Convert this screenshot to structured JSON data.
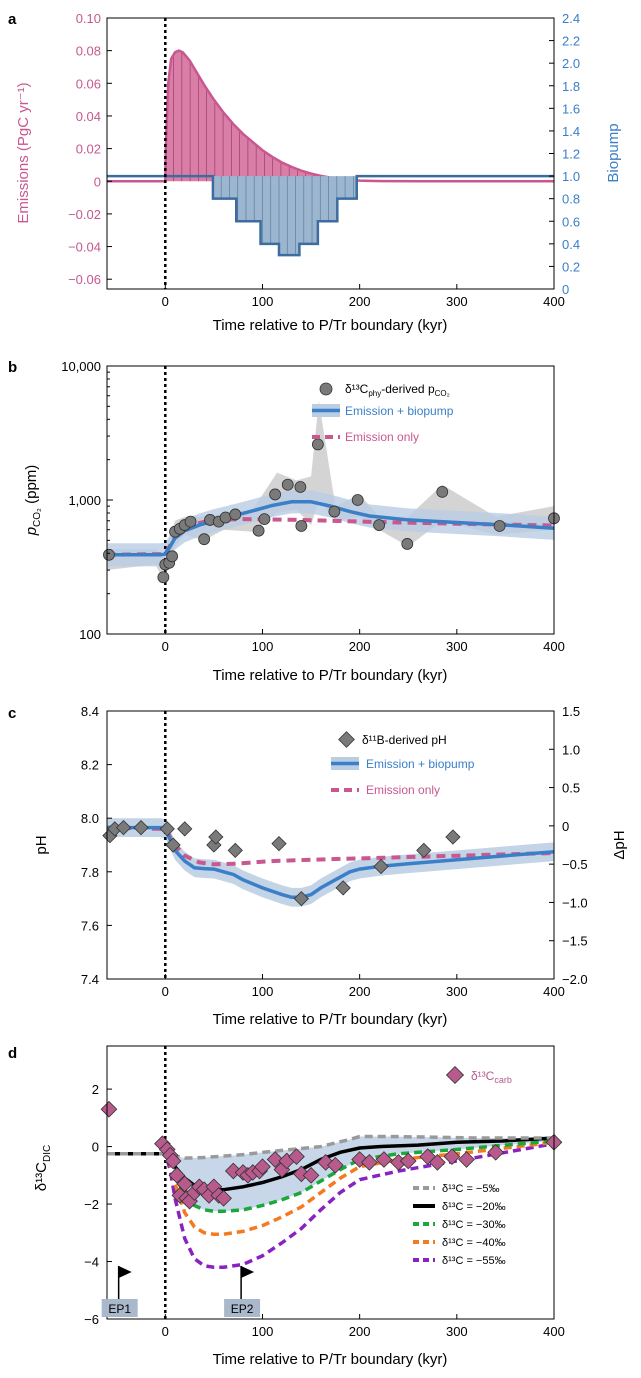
{
  "colors": {
    "pink": "#c8588f",
    "pink_fill": "#d97fa7",
    "blue": "#3a7fc8",
    "blue_fill": "#9db6cf",
    "blue_edge": "#3d6d9e",
    "band": "#b9cde3",
    "grey_band": "#cfcfcf",
    "marker_grey": "#7a7a7a",
    "carb": "#b85a8c",
    "green": "#1aa83a",
    "orange": "#f47a20",
    "purple": "#8a22c0",
    "grey_dash": "#9a9a9a"
  },
  "chart_data": [
    {
      "panel": "a",
      "type": "area",
      "xlabel": "Time relative to P/Tr boundary (kyr)",
      "xlim": [
        -60,
        400
      ],
      "xticks": [
        "0",
        "100",
        "200",
        "300",
        "400"
      ],
      "ylabel_left": "Emissions (PgC yr⁻¹)",
      "ylim_left": [
        -0.066,
        0.1
      ],
      "yticks_left": [
        "0.10",
        "0.08",
        "0.06",
        "0.04",
        "0.02",
        "0",
        "−0.02",
        "−0.04",
        "−0.06"
      ],
      "ylabel_right": "Biopump",
      "ylim_right": [
        0,
        2.4
      ],
      "yticks_right": [
        "2.4",
        "2.2",
        "2.0",
        "1.8",
        "1.6",
        "1.4",
        "1.2",
        "1.0",
        "0.8",
        "0.6",
        "0.4",
        "0.2",
        "0"
      ],
      "emissions": {
        "x": [
          -60,
          0,
          0.5,
          3,
          6,
          10,
          14,
          18,
          25,
          32,
          40,
          50,
          60,
          70,
          80,
          90,
          100,
          110,
          120,
          130,
          140,
          150,
          160,
          170,
          180,
          190,
          200,
          210,
          230,
          260,
          300,
          350,
          400
        ],
        "y": [
          0,
          0,
          0.02,
          0.06,
          0.075,
          0.079,
          0.08,
          0.079,
          0.074,
          0.067,
          0.059,
          0.05,
          0.042,
          0.035,
          0.029,
          0.024,
          0.019,
          0.015,
          0.0115,
          0.0088,
          0.0065,
          0.0047,
          0.0033,
          0.0022,
          0.0014,
          0.0008,
          0.0004,
          0.0002,
          5e-05,
          0,
          0,
          0,
          0
        ]
      },
      "biopump": {
        "steps": [
          [
            -60,
            1.0
          ],
          [
            0,
            1.0
          ],
          [
            49,
            0.8
          ],
          [
            73,
            0.6
          ],
          [
            98,
            0.4
          ],
          [
            117,
            0.3
          ],
          [
            138,
            0.4
          ],
          [
            157,
            0.6
          ],
          [
            177,
            0.8
          ],
          [
            197,
            1.0
          ],
          [
            400,
            1.0
          ]
        ]
      },
      "boundary_x": 0
    },
    {
      "panel": "b",
      "type": "line",
      "xlabel": "Time relative to P/Tr boundary (kyr)",
      "xlim": [
        -60,
        400
      ],
      "xticks": [
        "0",
        "100",
        "200",
        "300",
        "400"
      ],
      "ylabel": "pCO2 (ppm)",
      "yscale": "log",
      "ylim": [
        100,
        10000
      ],
      "yticks": [
        "100",
        "1,000",
        "10,000"
      ],
      "legend": [
        "δ¹³Cₚₕᵧ-derived pCO₂",
        "Emission + biopump",
        "Emission only"
      ],
      "legend_placement": "top-right",
      "points": [
        [
          -58,
          390
        ],
        [
          -2,
          265
        ],
        [
          0,
          330
        ],
        [
          4,
          340
        ],
        [
          7,
          380
        ],
        [
          10,
          580
        ],
        [
          15,
          610
        ],
        [
          20,
          650
        ],
        [
          26,
          690
        ],
        [
          40,
          510
        ],
        [
          46,
          710
        ],
        [
          55,
          690
        ],
        [
          62,
          740
        ],
        [
          72,
          780
        ],
        [
          96,
          590
        ],
        [
          102,
          720
        ],
        [
          113,
          1100
        ],
        [
          126,
          1300
        ],
        [
          139,
          1250
        ],
        [
          140,
          640
        ],
        [
          157,
          2600
        ],
        [
          174,
          820
        ],
        [
          198,
          1000
        ],
        [
          220,
          650
        ],
        [
          249,
          470
        ],
        [
          285,
          1150
        ],
        [
          344,
          640
        ],
        [
          400,
          730
        ]
      ],
      "range_band": {
        "x": [
          -60,
          -10,
          -2,
          0,
          10,
          20,
          40,
          60,
          90,
          115,
          135,
          150,
          158,
          175,
          200,
          220,
          250,
          285,
          340,
          400
        ],
        "lo": [
          300,
          330,
          250,
          300,
          450,
          550,
          500,
          600,
          580,
          800,
          850,
          650,
          1000,
          700,
          750,
          600,
          450,
          700,
          550,
          600
        ],
        "hi": [
          430,
          430,
          380,
          420,
          700,
          750,
          750,
          800,
          850,
          1600,
          1400,
          1500,
          5500,
          900,
          1100,
          750,
          750,
          1300,
          750,
          900
        ]
      },
      "emission_biopump": {
        "x": [
          -60,
          -5,
          0,
          5,
          10,
          20,
          35,
          50,
          70,
          90,
          110,
          130,
          150,
          170,
          190,
          210,
          250,
          300,
          350,
          400
        ],
        "y": [
          390,
          390,
          395,
          450,
          520,
          590,
          650,
          700,
          760,
          830,
          910,
          970,
          970,
          900,
          820,
          760,
          710,
          680,
          650,
          615
        ]
      },
      "emission_biopump_band_factor": 1.22,
      "emission_only": {
        "x": [
          -60,
          0,
          5,
          10,
          20,
          30,
          45,
          60,
          80,
          100,
          130,
          170,
          220,
          300,
          400
        ],
        "y": [
          390,
          395,
          460,
          530,
          610,
          660,
          700,
          715,
          720,
          718,
          712,
          700,
          685,
          665,
          645
        ]
      },
      "boundary_x": 0
    },
    {
      "panel": "c",
      "type": "line",
      "xlabel": "Time relative to P/Tr boundary (kyr)",
      "xlim": [
        -60,
        400
      ],
      "xticks": [
        "0",
        "100",
        "200",
        "300",
        "400"
      ],
      "ylabel_left": "pH",
      "ylim_left": [
        7.4,
        8.4
      ],
      "yticks_left": [
        "8.4",
        "8.2",
        "8.0",
        "7.8",
        "7.6",
        "7.4"
      ],
      "ylabel_right": "ΔpH",
      "ylim_right": [
        -2.0,
        1.5
      ],
      "yticks_right": [
        "1.5",
        "1.0",
        "0.5",
        "0",
        "−0.5",
        "−1.0",
        "−1.5",
        "−2.0"
      ],
      "legend": [
        "δ¹¹B-derived pH",
        "Emission + biopump",
        "Emission only"
      ],
      "legend_placement": "top-right",
      "points": [
        [
          -57,
          7.935
        ],
        [
          -52,
          7.96
        ],
        [
          -43,
          7.965
        ],
        [
          -25,
          7.965
        ],
        [
          2,
          7.96
        ],
        [
          8,
          7.9
        ],
        [
          20,
          7.96
        ],
        [
          50,
          7.9
        ],
        [
          52,
          7.93
        ],
        [
          72,
          7.88
        ],
        [
          117,
          7.905
        ],
        [
          140,
          7.7
        ],
        [
          183,
          7.74
        ],
        [
          222,
          7.82
        ],
        [
          266,
          7.88
        ],
        [
          296,
          7.93
        ]
      ],
      "emission_biopump": {
        "x": [
          -60,
          -5,
          0,
          5,
          10,
          20,
          30,
          40,
          50,
          60,
          70,
          80,
          100,
          120,
          130,
          140,
          150,
          160,
          175,
          190,
          200,
          220,
          250,
          300,
          350,
          400
        ],
        "y": [
          7.965,
          7.965,
          7.96,
          7.92,
          7.88,
          7.84,
          7.815,
          7.812,
          7.81,
          7.8,
          7.79,
          7.77,
          7.74,
          7.715,
          7.705,
          7.705,
          7.715,
          7.74,
          7.77,
          7.8,
          7.81,
          7.82,
          7.83,
          7.845,
          7.86,
          7.875
        ]
      },
      "emission_biopump_band_halfwidth": 0.035,
      "emission_only": {
        "x": [
          -60,
          0,
          5,
          10,
          20,
          35,
          50,
          70,
          90,
          110,
          150,
          200,
          250,
          300,
          350,
          400
        ],
        "y": [
          7.965,
          7.96,
          7.93,
          7.9,
          7.86,
          7.835,
          7.828,
          7.83,
          7.835,
          7.84,
          7.845,
          7.85,
          7.855,
          7.86,
          7.865,
          7.87
        ]
      },
      "boundary_x": 0
    },
    {
      "panel": "d",
      "type": "line",
      "xlabel": "Time relative to P/Tr boundary (kyr)",
      "xlim": [
        -60,
        400
      ],
      "xticks": [
        "0",
        "100",
        "200",
        "300",
        "400"
      ],
      "ylabel": "δ¹³C_DIC",
      "ylim": [
        -6,
        3.5
      ],
      "yticks": [
        "2",
        "0",
        "−2",
        "−4",
        "−6"
      ],
      "legend": [
        "δ¹³C_carb",
        "δ¹³C = −5‰",
        "δ¹³C = −20‰",
        "δ¹³C = −30‰",
        "δ¹³C = −40‰",
        "δ¹³C = −55‰"
      ],
      "points": [
        [
          -58,
          1.3
        ],
        [
          -3,
          0.1
        ],
        [
          2,
          -0.1
        ],
        [
          5,
          -0.3
        ],
        [
          8,
          -0.5
        ],
        [
          12,
          -1.0
        ],
        [
          15,
          -1.7
        ],
        [
          20,
          -1.3
        ],
        [
          22,
          -1.8
        ],
        [
          25,
          -1.9
        ],
        [
          30,
          -1.6
        ],
        [
          35,
          -1.4
        ],
        [
          40,
          -1.5
        ],
        [
          45,
          -1.7
        ],
        [
          50,
          -1.4
        ],
        [
          55,
          -1.7
        ],
        [
          60,
          -1.8
        ],
        [
          70,
          -0.85
        ],
        [
          80,
          -0.9
        ],
        [
          85,
          -1.0
        ],
        [
          90,
          -0.9
        ],
        [
          97,
          -0.85
        ],
        [
          100,
          -0.7
        ],
        [
          113,
          -0.45
        ],
        [
          120,
          -0.8
        ],
        [
          125,
          -0.5
        ],
        [
          135,
          -0.35
        ],
        [
          140,
          -0.95
        ],
        [
          150,
          -1.0
        ],
        [
          165,
          -0.55
        ],
        [
          175,
          -0.65
        ],
        [
          200,
          -0.45
        ],
        [
          210,
          -0.55
        ],
        [
          225,
          -0.45
        ],
        [
          240,
          -0.55
        ],
        [
          250,
          -0.5
        ],
        [
          270,
          -0.35
        ],
        [
          280,
          -0.55
        ],
        [
          295,
          -0.35
        ],
        [
          310,
          -0.45
        ],
        [
          340,
          -0.2
        ],
        [
          400,
          0.15
        ]
      ],
      "scenarios": [
        {
          "label": "δ¹³C = −5‰",
          "color_key": "grey_dash",
          "dash": true,
          "x": [
            -60,
            -5,
            0,
            5,
            10,
            20,
            40,
            60,
            80,
            100,
            130,
            160,
            190,
            200,
            230,
            270,
            320,
            400
          ],
          "y": [
            -0.25,
            -0.25,
            -0.25,
            -0.28,
            -0.32,
            -0.4,
            -0.38,
            -0.33,
            -0.28,
            -0.2,
            -0.1,
            0.0,
            0.25,
            0.35,
            0.35,
            0.33,
            0.3,
            0.3
          ]
        },
        {
          "label": "δ¹³C = −20‰",
          "color_key": "black",
          "dash": false,
          "x": [
            -60,
            -5,
            0,
            5,
            10,
            20,
            30,
            40,
            50,
            60,
            80,
            100,
            120,
            140,
            160,
            180,
            200,
            220,
            260,
            300,
            350,
            400
          ],
          "y": [
            -0.25,
            -0.25,
            -0.25,
            -0.4,
            -0.7,
            -1.1,
            -1.35,
            -1.48,
            -1.52,
            -1.5,
            -1.4,
            -1.25,
            -1.05,
            -0.8,
            -0.45,
            -0.2,
            -0.05,
            0.0,
            0.05,
            0.15,
            0.2,
            0.3
          ]
        },
        {
          "label": "δ¹³C = −30‰",
          "color_key": "green",
          "dash": true,
          "x": [
            -60,
            0,
            5,
            10,
            20,
            30,
            40,
            50,
            60,
            80,
            100,
            120,
            140,
            160,
            180,
            200,
            240,
            300,
            350,
            400
          ],
          "y": [
            -0.25,
            -0.25,
            -0.5,
            -1.0,
            -1.7,
            -2.05,
            -2.2,
            -2.25,
            -2.25,
            -2.2,
            -2.05,
            -1.85,
            -1.6,
            -1.2,
            -0.8,
            -0.45,
            -0.25,
            -0.1,
            0.05,
            0.2
          ]
        },
        {
          "label": "δ¹³C = −40‰",
          "color_key": "orange",
          "dash": true,
          "x": [
            -60,
            0,
            5,
            10,
            20,
            30,
            40,
            50,
            60,
            80,
            100,
            120,
            140,
            160,
            180,
            200,
            240,
            300,
            350,
            400
          ],
          "y": [
            -0.25,
            -0.25,
            -0.6,
            -1.3,
            -2.3,
            -2.8,
            -3.0,
            -3.05,
            -3.05,
            -2.95,
            -2.75,
            -2.45,
            -2.1,
            -1.6,
            -1.1,
            -0.7,
            -0.45,
            -0.25,
            -0.05,
            0.15
          ]
        },
        {
          "label": "δ¹³C = −55‰",
          "color_key": "purple",
          "dash": true,
          "x": [
            -60,
            0,
            5,
            10,
            20,
            30,
            40,
            50,
            60,
            80,
            100,
            120,
            140,
            160,
            180,
            200,
            240,
            300,
            350,
            400
          ],
          "y": [
            -0.25,
            -0.25,
            -0.8,
            -1.8,
            -3.2,
            -3.9,
            -4.15,
            -4.2,
            -4.2,
            -4.1,
            -3.8,
            -3.35,
            -2.85,
            -2.2,
            -1.6,
            -1.15,
            -0.85,
            -0.5,
            -0.2,
            0.1
          ]
        }
      ],
      "band": {
        "upper_ref": "δ¹³C = −5‰",
        "lower_ref": "δ¹³C = −30‰"
      },
      "events": [
        {
          "label": "EP1",
          "x": -48
        },
        {
          "label": "EP2",
          "x": 78
        }
      ],
      "boundary_x": 0
    }
  ],
  "panels": {
    "a": {
      "letter": "a",
      "xlabel": "Time relative to P/Tr boundary (kyr)",
      "ylabel_left": "Emissions (PgC yr⁻¹)",
      "ylabel_right": "Biopump"
    },
    "b": {
      "letter": "b",
      "xlabel": "Time relative to P/Tr boundary (kyr)",
      "legend1": "δ¹³C",
      "legend1_sub": "phy",
      "legend1_rest": "-derived p",
      "legend1_sub2": "CO₂",
      "legend2": "Emission + biopump",
      "legend3": "Emission only",
      "ylabel_main": "p",
      "ylabel_sub": "CO₂",
      "ylabel_rest": " (ppm)"
    },
    "c": {
      "letter": "c",
      "xlabel": "Time relative to P/Tr boundary (kyr)",
      "ylabel_left": "pH",
      "ylabel_right": "ΔpH",
      "legend1": "δ¹¹B-derived pH",
      "legend2": "Emission + biopump",
      "legend3": "Emission only"
    },
    "d": {
      "letter": "d",
      "xlabel": "Time relative to P/Tr boundary (kyr)",
      "ylabel_main": "δ¹³C",
      "ylabel_sub": "DIC",
      "legend_carb": "δ¹³C",
      "legend_carb_sub": "carb",
      "ep1": "EP1",
      "ep2": "EP2",
      "scen_labels": [
        "δ¹³C = −5‰",
        "δ¹³C = −20‰",
        "δ¹³C = −30‰",
        "δ¹³C = −40‰",
        "δ¹³C = −55‰"
      ]
    }
  }
}
